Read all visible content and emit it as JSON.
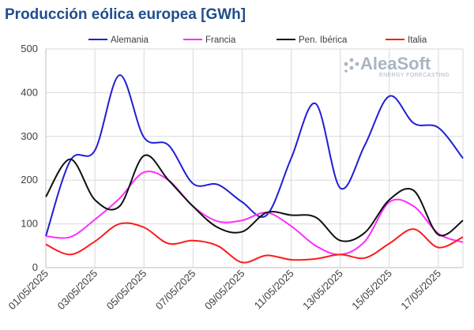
{
  "chart_data": {
    "type": "line",
    "title": "Producción eólica europea [GWh]",
    "xlabel": "",
    "ylabel": "",
    "ylim": [
      0,
      500
    ],
    "y_ticks": [
      0,
      100,
      200,
      300,
      400,
      500
    ],
    "x_ticks": [
      "01/05/2025",
      "03/05/2025",
      "05/05/2025",
      "07/05/2025",
      "09/05/2025",
      "11/05/2025",
      "13/05/2025",
      "15/05/2025",
      "17/05/2025"
    ],
    "x": [
      "01/05",
      "02/05",
      "03/05",
      "04/05",
      "05/05",
      "06/05",
      "07/05",
      "08/05",
      "09/05",
      "10/05",
      "11/05",
      "12/05",
      "13/05",
      "14/05",
      "15/05",
      "16/05",
      "17/05",
      "18/05"
    ],
    "grid": true,
    "legend": "top",
    "series": [
      {
        "name": "Alemania",
        "color": "#1f1fd6",
        "values": [
          72,
          245,
          268,
          440,
          298,
          280,
          192,
          190,
          150,
          120,
          250,
          375,
          182,
          280,
          392,
          330,
          320,
          250
        ]
      },
      {
        "name": "Francia",
        "color": "#ff2cff",
        "values": [
          72,
          70,
          110,
          158,
          218,
          200,
          140,
          106,
          108,
          126,
          95,
          50,
          30,
          60,
          150,
          140,
          78,
          58
        ]
      },
      {
        "name": "Pen. Ibérica",
        "color": "#111111",
        "values": [
          162,
          248,
          155,
          140,
          256,
          200,
          140,
          92,
          82,
          126,
          120,
          115,
          62,
          80,
          155,
          176,
          75,
          108
        ]
      },
      {
        "name": "Italia",
        "color": "#ff1a1a",
        "values": [
          53,
          30,
          60,
          100,
          92,
          55,
          62,
          50,
          12,
          28,
          18,
          20,
          30,
          22,
          55,
          88,
          46,
          70
        ]
      }
    ],
    "watermark": {
      "brand": "AleaSoft",
      "tagline": "ENERGY FORECASTING"
    }
  }
}
